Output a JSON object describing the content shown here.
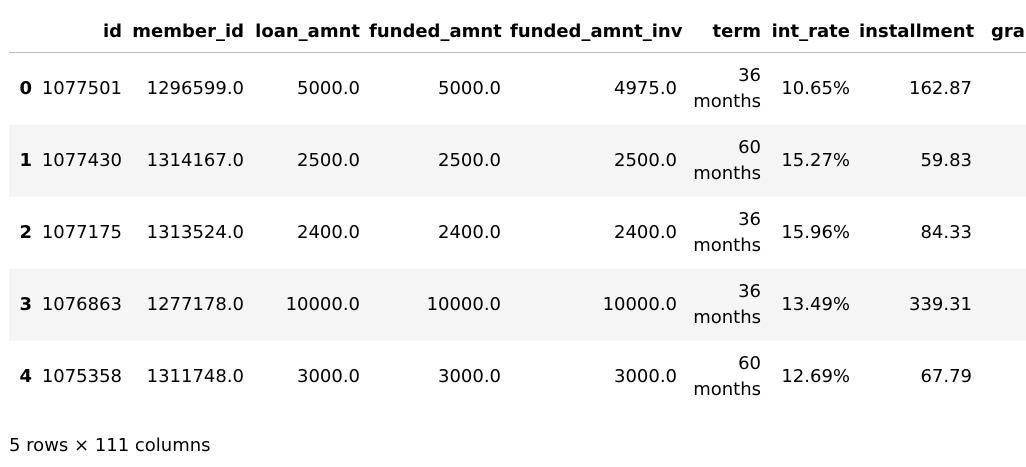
{
  "table": {
    "columns": [
      "",
      "id",
      "member_id",
      "loan_amnt",
      "funded_amnt",
      "funded_amnt_inv",
      "term",
      "int_rate",
      "installment",
      "gra"
    ],
    "rows": [
      {
        "index": "0",
        "id": "1077501",
        "member_id": "1296599.0",
        "loan_amnt": "5000.0",
        "funded_amnt": "5000.0",
        "funded_amnt_inv": "4975.0",
        "term_num": "36",
        "term_unit": "months",
        "int_rate": "10.65%",
        "installment": "162.87"
      },
      {
        "index": "1",
        "id": "1077430",
        "member_id": "1314167.0",
        "loan_amnt": "2500.0",
        "funded_amnt": "2500.0",
        "funded_amnt_inv": "2500.0",
        "term_num": "60",
        "term_unit": "months",
        "int_rate": "15.27%",
        "installment": "59.83"
      },
      {
        "index": "2",
        "id": "1077175",
        "member_id": "1313524.0",
        "loan_amnt": "2400.0",
        "funded_amnt": "2400.0",
        "funded_amnt_inv": "2400.0",
        "term_num": "36",
        "term_unit": "months",
        "int_rate": "15.96%",
        "installment": "84.33"
      },
      {
        "index": "3",
        "id": "1076863",
        "member_id": "1277178.0",
        "loan_amnt": "10000.0",
        "funded_amnt": "10000.0",
        "funded_amnt_inv": "10000.0",
        "term_num": "36",
        "term_unit": "months",
        "int_rate": "13.49%",
        "installment": "339.31"
      },
      {
        "index": "4",
        "id": "1075358",
        "member_id": "1311748.0",
        "loan_amnt": "3000.0",
        "funded_amnt": "3000.0",
        "funded_amnt_inv": "3000.0",
        "term_num": "60",
        "term_unit": "months",
        "int_rate": "12.69%",
        "installment": "67.79"
      }
    ]
  },
  "footer": {
    "summary": "5 rows × 111 columns"
  },
  "colors": {
    "stripe": "#f5f5f5",
    "border": "#bdbdbd",
    "text": "#000000"
  }
}
